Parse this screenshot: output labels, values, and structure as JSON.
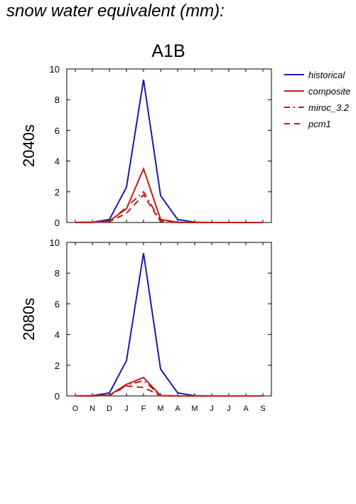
{
  "page_title": "snow water equivalent (mm):",
  "colors": {
    "historical": "#1a1ab0",
    "future": "#c01c1c",
    "axis": "#000000"
  },
  "chart_data": {
    "type": "line",
    "title": "A1B",
    "categories": [
      "O",
      "N",
      "D",
      "J",
      "F",
      "M",
      "A",
      "M",
      "J",
      "J",
      "A",
      "S"
    ],
    "ylim": [
      0,
      10
    ],
    "yticks": [
      0,
      2,
      4,
      6,
      8,
      10
    ],
    "grid": false,
    "legend_position": "top-right outside",
    "legend": [
      {
        "label": "historical",
        "style": "solid",
        "color": "#1a1ab0"
      },
      {
        "label": "composite",
        "style": "solid",
        "color": "#c01c1c"
      },
      {
        "label": "miroc_3.2",
        "style": "dashdot",
        "color": "#c01c1c"
      },
      {
        "label": "pcm1",
        "style": "dash",
        "color": "#c01c1c"
      }
    ],
    "panels": [
      {
        "label": "2040s",
        "series": [
          {
            "name": "historical",
            "values": [
              0,
              0.02,
              0.2,
              2.3,
              9.3,
              1.75,
              0.2,
              0.02,
              0,
              0,
              0,
              0
            ]
          },
          {
            "name": "composite",
            "values": [
              0,
              0.02,
              0.1,
              0.9,
              3.5,
              0.2,
              0.02,
              0,
              0,
              0,
              0,
              0
            ]
          },
          {
            "name": "miroc_3.2",
            "values": [
              0,
              0.01,
              0.05,
              1.0,
              2.0,
              0.1,
              0,
              0,
              0,
              0,
              0,
              0
            ]
          },
          {
            "name": "pcm1",
            "values": [
              0,
              0.01,
              0.05,
              0.6,
              1.8,
              0.05,
              0,
              0,
              0,
              0,
              0,
              0
            ]
          }
        ]
      },
      {
        "label": "2080s",
        "series": [
          {
            "name": "historical",
            "values": [
              0,
              0.02,
              0.2,
              2.3,
              9.3,
              1.75,
              0.2,
              0.02,
              0,
              0,
              0,
              0
            ]
          },
          {
            "name": "composite",
            "values": [
              0,
              0.01,
              0.05,
              0.75,
              1.2,
              0.03,
              0,
              0,
              0,
              0,
              0,
              0
            ]
          },
          {
            "name": "miroc_3.2",
            "values": [
              0,
              0.01,
              0.03,
              0.7,
              1.0,
              0.02,
              0,
              0,
              0,
              0,
              0,
              0
            ]
          },
          {
            "name": "pcm1",
            "values": [
              0,
              0.01,
              0.03,
              0.65,
              0.55,
              0.02,
              0,
              0,
              0,
              0,
              0,
              0
            ]
          }
        ]
      }
    ]
  }
}
